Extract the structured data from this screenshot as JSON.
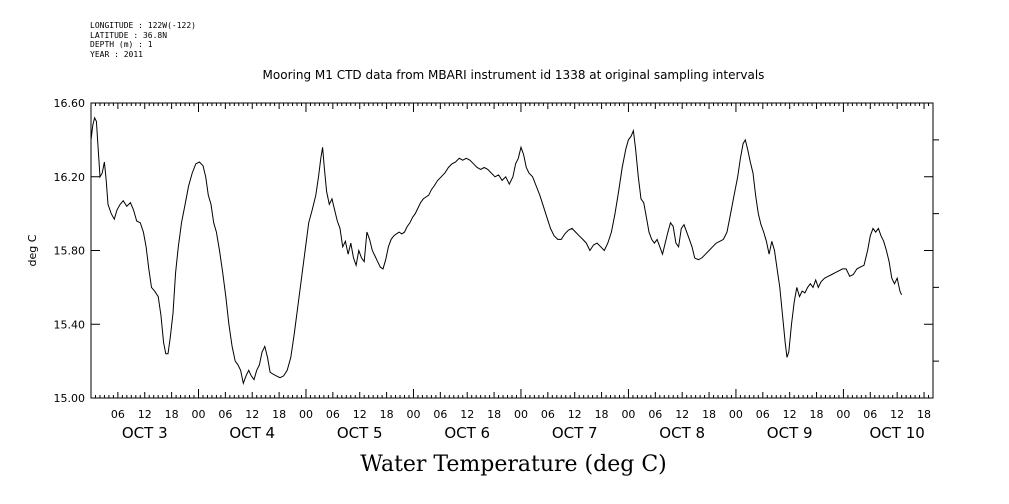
{
  "header": {
    "meta_lines": [
      "LONGITUDE : 122W(-122)",
      "LATITUDE : 36.8N",
      "DEPTH (m) : 1",
      "YEAR : 2011"
    ],
    "title": "Mooring M1 CTD data from MBARI instrument id 1338 at original sampling intervals",
    "footer_title": "Water Temperature (deg C)"
  },
  "chart_data": {
    "type": "line",
    "title": "Mooring M1 CTD data from MBARI instrument id 1338 at original sampling intervals",
    "ylabel": "deg C",
    "xlabel": "",
    "ylim": [
      15.0,
      16.6
    ],
    "xlim_hours": [
      0,
      188
    ],
    "y_ticks": [
      "15.00",
      "15.40",
      "15.80",
      "16.20",
      "16.60"
    ],
    "hour_tick_labels": [
      "06",
      "12",
      "18",
      "00"
    ],
    "day_labels": [
      "OCT  3",
      "OCT  4",
      "OCT  5",
      "OCT  6",
      "OCT  7",
      "OCT  8",
      "OCT  9",
      "OCT 10"
    ],
    "grid": false,
    "series": [
      {
        "points": [
          [
            0.0,
            16.4
          ],
          [
            0.4,
            16.48
          ],
          [
            0.8,
            16.52
          ],
          [
            1.2,
            16.5
          ],
          [
            1.6,
            16.35
          ],
          [
            2.0,
            16.2
          ],
          [
            2.5,
            16.22
          ],
          [
            3.0,
            16.28
          ],
          [
            3.4,
            16.18
          ],
          [
            3.8,
            16.05
          ],
          [
            4.5,
            16.0
          ],
          [
            5.2,
            15.97
          ],
          [
            5.8,
            16.02
          ],
          [
            6.5,
            16.05
          ],
          [
            7.2,
            16.07
          ],
          [
            8.0,
            16.04
          ],
          [
            8.8,
            16.06
          ],
          [
            9.5,
            16.02
          ],
          [
            10.2,
            15.96
          ],
          [
            11.0,
            15.95
          ],
          [
            11.7,
            15.9
          ],
          [
            12.3,
            15.82
          ],
          [
            12.9,
            15.7
          ],
          [
            13.5,
            15.6
          ],
          [
            14.2,
            15.58
          ],
          [
            15.0,
            15.55
          ],
          [
            15.6,
            15.45
          ],
          [
            16.2,
            15.3
          ],
          [
            16.7,
            15.24
          ],
          [
            17.2,
            15.24
          ],
          [
            17.7,
            15.33
          ],
          [
            18.3,
            15.46
          ],
          [
            18.9,
            15.68
          ],
          [
            19.5,
            15.82
          ],
          [
            20.2,
            15.95
          ],
          [
            21.0,
            16.05
          ],
          [
            21.8,
            16.15
          ],
          [
            22.6,
            16.22
          ],
          [
            23.4,
            16.27
          ],
          [
            24.2,
            16.28
          ],
          [
            25.0,
            16.26
          ],
          [
            25.6,
            16.2
          ],
          [
            26.2,
            16.1
          ],
          [
            26.8,
            16.05
          ],
          [
            27.4,
            15.95
          ],
          [
            28.0,
            15.9
          ],
          [
            28.7,
            15.8
          ],
          [
            29.4,
            15.68
          ],
          [
            30.1,
            15.55
          ],
          [
            30.8,
            15.4
          ],
          [
            31.5,
            15.28
          ],
          [
            32.2,
            15.2
          ],
          [
            32.8,
            15.18
          ],
          [
            33.4,
            15.15
          ],
          [
            34.0,
            15.08
          ],
          [
            34.6,
            15.12
          ],
          [
            35.2,
            15.15
          ],
          [
            35.8,
            15.12
          ],
          [
            36.4,
            15.1
          ],
          [
            37.0,
            15.15
          ],
          [
            37.6,
            15.18
          ],
          [
            38.2,
            15.25
          ],
          [
            38.8,
            15.28
          ],
          [
            39.4,
            15.22
          ],
          [
            40.0,
            15.14
          ],
          [
            40.6,
            15.13
          ],
          [
            41.4,
            15.12
          ],
          [
            42.2,
            15.11
          ],
          [
            43.0,
            15.12
          ],
          [
            43.8,
            15.15
          ],
          [
            44.6,
            15.22
          ],
          [
            45.4,
            15.35
          ],
          [
            46.2,
            15.5
          ],
          [
            47.0,
            15.65
          ],
          [
            47.8,
            15.8
          ],
          [
            48.6,
            15.95
          ],
          [
            49.4,
            16.02
          ],
          [
            50.2,
            16.1
          ],
          [
            50.8,
            16.2
          ],
          [
            51.3,
            16.3
          ],
          [
            51.7,
            16.36
          ],
          [
            52.1,
            16.25
          ],
          [
            52.6,
            16.12
          ],
          [
            53.2,
            16.05
          ],
          [
            53.8,
            16.08
          ],
          [
            54.4,
            16.02
          ],
          [
            55.0,
            15.96
          ],
          [
            55.6,
            15.92
          ],
          [
            56.2,
            15.82
          ],
          [
            56.8,
            15.85
          ],
          [
            57.4,
            15.78
          ],
          [
            58.0,
            15.84
          ],
          [
            58.6,
            15.76
          ],
          [
            59.2,
            15.72
          ],
          [
            59.8,
            15.8
          ],
          [
            60.4,
            15.76
          ],
          [
            61.0,
            15.74
          ],
          [
            61.6,
            15.9
          ],
          [
            62.2,
            15.86
          ],
          [
            62.8,
            15.8
          ],
          [
            63.4,
            15.77
          ],
          [
            64.0,
            15.74
          ],
          [
            64.6,
            15.71
          ],
          [
            65.2,
            15.7
          ],
          [
            65.8,
            15.75
          ],
          [
            66.4,
            15.82
          ],
          [
            67.0,
            15.86
          ],
          [
            67.6,
            15.88
          ],
          [
            68.2,
            15.89
          ],
          [
            68.8,
            15.9
          ],
          [
            69.4,
            15.89
          ],
          [
            70.0,
            15.9
          ],
          [
            70.6,
            15.93
          ],
          [
            71.2,
            15.95
          ],
          [
            71.8,
            15.98
          ],
          [
            72.4,
            16.0
          ],
          [
            73.0,
            16.03
          ],
          [
            73.6,
            16.06
          ],
          [
            74.2,
            16.08
          ],
          [
            74.8,
            16.09
          ],
          [
            75.4,
            16.1
          ],
          [
            76.0,
            16.13
          ],
          [
            76.6,
            16.15
          ],
          [
            77.4,
            16.18
          ],
          [
            78.2,
            16.2
          ],
          [
            79.0,
            16.22
          ],
          [
            79.8,
            16.25
          ],
          [
            80.6,
            16.27
          ],
          [
            81.4,
            16.28
          ],
          [
            82.2,
            16.3
          ],
          [
            83.0,
            16.29
          ],
          [
            83.8,
            16.3
          ],
          [
            84.6,
            16.29
          ],
          [
            85.4,
            16.27
          ],
          [
            86.2,
            16.25
          ],
          [
            87.0,
            16.24
          ],
          [
            87.8,
            16.25
          ],
          [
            88.6,
            16.24
          ],
          [
            89.4,
            16.22
          ],
          [
            90.2,
            16.2
          ],
          [
            91.0,
            16.21
          ],
          [
            91.8,
            16.18
          ],
          [
            92.6,
            16.2
          ],
          [
            93.4,
            16.16
          ],
          [
            94.2,
            16.2
          ],
          [
            94.8,
            16.27
          ],
          [
            95.4,
            16.3
          ],
          [
            96.0,
            16.36
          ],
          [
            96.6,
            16.32
          ],
          [
            97.2,
            16.25
          ],
          [
            97.8,
            16.22
          ],
          [
            98.6,
            16.2
          ],
          [
            99.4,
            16.15
          ],
          [
            100.2,
            16.1
          ],
          [
            101.0,
            16.04
          ],
          [
            101.8,
            15.98
          ],
          [
            102.6,
            15.92
          ],
          [
            103.4,
            15.88
          ],
          [
            104.2,
            15.86
          ],
          [
            105.0,
            15.86
          ],
          [
            105.8,
            15.89
          ],
          [
            106.6,
            15.91
          ],
          [
            107.4,
            15.92
          ],
          [
            108.2,
            15.9
          ],
          [
            109.0,
            15.88
          ],
          [
            109.8,
            15.86
          ],
          [
            110.6,
            15.84
          ],
          [
            111.4,
            15.8
          ],
          [
            112.2,
            15.83
          ],
          [
            113.0,
            15.84
          ],
          [
            113.8,
            15.82
          ],
          [
            114.6,
            15.8
          ],
          [
            115.4,
            15.84
          ],
          [
            116.2,
            15.9
          ],
          [
            117.0,
            16.0
          ],
          [
            117.8,
            16.12
          ],
          [
            118.6,
            16.25
          ],
          [
            119.4,
            16.35
          ],
          [
            120.0,
            16.4
          ],
          [
            120.6,
            16.42
          ],
          [
            121.1,
            16.45
          ],
          [
            121.6,
            16.35
          ],
          [
            122.2,
            16.2
          ],
          [
            122.8,
            16.08
          ],
          [
            123.4,
            16.06
          ],
          [
            124.0,
            15.98
          ],
          [
            124.6,
            15.9
          ],
          [
            125.2,
            15.86
          ],
          [
            125.8,
            15.84
          ],
          [
            126.4,
            15.86
          ],
          [
            127.0,
            15.82
          ],
          [
            127.6,
            15.78
          ],
          [
            128.2,
            15.84
          ],
          [
            128.8,
            15.9
          ],
          [
            129.4,
            15.95
          ],
          [
            130.0,
            15.93
          ],
          [
            130.6,
            15.84
          ],
          [
            131.2,
            15.82
          ],
          [
            131.8,
            15.92
          ],
          [
            132.4,
            15.94
          ],
          [
            133.0,
            15.9
          ],
          [
            133.6,
            15.86
          ],
          [
            134.2,
            15.82
          ],
          [
            134.8,
            15.76
          ],
          [
            135.6,
            15.75
          ],
          [
            136.4,
            15.76
          ],
          [
            137.2,
            15.78
          ],
          [
            138.0,
            15.8
          ],
          [
            138.8,
            15.82
          ],
          [
            139.6,
            15.84
          ],
          [
            140.4,
            15.85
          ],
          [
            141.2,
            15.86
          ],
          [
            142.0,
            15.9
          ],
          [
            142.8,
            16.0
          ],
          [
            143.6,
            16.1
          ],
          [
            144.4,
            16.2
          ],
          [
            145.0,
            16.3
          ],
          [
            145.6,
            16.38
          ],
          [
            146.1,
            16.4
          ],
          [
            146.6,
            16.35
          ],
          [
            147.2,
            16.28
          ],
          [
            147.8,
            16.22
          ],
          [
            148.4,
            16.1
          ],
          [
            149.0,
            16.0
          ],
          [
            149.6,
            15.94
          ],
          [
            150.2,
            15.9
          ],
          [
            150.8,
            15.85
          ],
          [
            151.4,
            15.78
          ],
          [
            152.0,
            15.85
          ],
          [
            152.6,
            15.8
          ],
          [
            153.2,
            15.7
          ],
          [
            153.8,
            15.6
          ],
          [
            154.4,
            15.45
          ],
          [
            155.0,
            15.3
          ],
          [
            155.4,
            15.22
          ],
          [
            155.8,
            15.25
          ],
          [
            156.4,
            15.4
          ],
          [
            157.0,
            15.52
          ],
          [
            157.6,
            15.6
          ],
          [
            158.2,
            15.55
          ],
          [
            158.8,
            15.58
          ],
          [
            159.4,
            15.57
          ],
          [
            160.0,
            15.6
          ],
          [
            160.6,
            15.62
          ],
          [
            161.2,
            15.6
          ],
          [
            161.8,
            15.64
          ],
          [
            162.4,
            15.6
          ],
          [
            163.0,
            15.63
          ],
          [
            163.8,
            15.65
          ],
          [
            164.6,
            15.66
          ],
          [
            165.4,
            15.67
          ],
          [
            166.2,
            15.68
          ],
          [
            167.0,
            15.69
          ],
          [
            167.8,
            15.7
          ],
          [
            168.6,
            15.7
          ],
          [
            169.4,
            15.66
          ],
          [
            170.2,
            15.67
          ],
          [
            171.0,
            15.7
          ],
          [
            171.8,
            15.71
          ],
          [
            172.6,
            15.72
          ],
          [
            173.4,
            15.8
          ],
          [
            174.0,
            15.88
          ],
          [
            174.6,
            15.92
          ],
          [
            175.2,
            15.9
          ],
          [
            175.8,
            15.92
          ],
          [
            176.4,
            15.88
          ],
          [
            177.0,
            15.85
          ],
          [
            177.6,
            15.8
          ],
          [
            178.2,
            15.74
          ],
          [
            178.8,
            15.65
          ],
          [
            179.4,
            15.62
          ],
          [
            180.0,
            15.65
          ],
          [
            180.6,
            15.58
          ],
          [
            181.0,
            15.56
          ]
        ]
      }
    ]
  }
}
